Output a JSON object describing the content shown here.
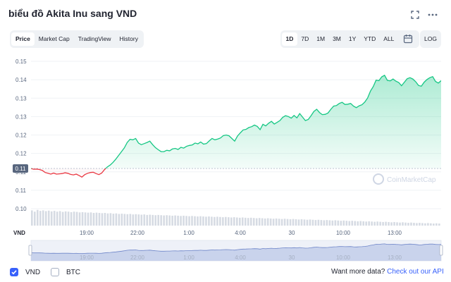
{
  "header": {
    "title": "biểu đồ Akita Inu sang VND"
  },
  "toolbar": {
    "fullscreen_icon": "expand-icon",
    "more_icon": "more-dots-icon",
    "tabs": [
      {
        "label": "Price",
        "active": true
      },
      {
        "label": "Market Cap",
        "active": false
      },
      {
        "label": "TradingView",
        "active": false
      },
      {
        "label": "History",
        "active": false
      }
    ],
    "ranges": [
      {
        "label": "1D",
        "active": true
      },
      {
        "label": "7D",
        "active": false
      },
      {
        "label": "1M",
        "active": false
      },
      {
        "label": "3M",
        "active": false
      },
      {
        "label": "1Y",
        "active": false
      },
      {
        "label": "YTD",
        "active": false
      },
      {
        "label": "ALL",
        "active": false
      }
    ],
    "calendar_icon": "calendar-icon",
    "log_label": "LOG"
  },
  "chart_data": {
    "type": "area",
    "currency_label": "VND",
    "current_price_tag": "0.11",
    "watermark": "CoinMarketCap",
    "y_ticks": [
      "0.15",
      "0.14",
      "0.13",
      "0.13",
      "0.12",
      "0.12",
      "0.11",
      "0.11",
      "0.10"
    ],
    "y_range": [
      0.095,
      0.15
    ],
    "x_ticks": [
      "19:00",
      "22:00",
      "1:00",
      "4:00",
      "30",
      "10:00",
      "13:00"
    ],
    "series": [
      {
        "values": [
          0.11,
          0.1097,
          0.1098,
          0.1096,
          0.1093,
          0.1085,
          0.1082,
          0.1079,
          0.1083,
          0.1079,
          0.108,
          0.1081,
          0.1084,
          0.1082,
          0.1078,
          0.1076,
          0.1079,
          0.1074,
          0.1068,
          0.1077,
          0.1082,
          0.1085,
          0.1086,
          0.1081,
          0.1077,
          0.1083,
          0.1096,
          0.1106,
          0.1113,
          0.1123,
          0.1135,
          0.1149,
          0.1163,
          0.1177,
          0.1197,
          0.1209,
          0.1207,
          0.1212,
          0.1195,
          0.1189,
          0.1193,
          0.1197,
          0.1202,
          0.1189,
          0.1178,
          0.117,
          0.1163,
          0.1163,
          0.1168,
          0.1166,
          0.1173,
          0.1175,
          0.1171,
          0.1179,
          0.1176,
          0.1183,
          0.1186,
          0.1188,
          0.1195,
          0.1192,
          0.1199,
          0.1191,
          0.1193,
          0.1203,
          0.1212,
          0.1207,
          0.121,
          0.1214,
          0.1223,
          0.1225,
          0.1222,
          0.1212,
          0.1202,
          0.1221,
          0.1233,
          0.1244,
          0.1246,
          0.1253,
          0.1256,
          0.1262,
          0.1257,
          0.1245,
          0.1265,
          0.1259,
          0.1269,
          0.1276,
          0.1266,
          0.1272,
          0.1279,
          0.1291,
          0.1297,
          0.1294,
          0.1288,
          0.1298,
          0.1289,
          0.1305,
          0.1292,
          0.1279,
          0.1283,
          0.1297,
          0.1313,
          0.1321,
          0.1309,
          0.1301,
          0.1302,
          0.1307,
          0.1321,
          0.1333,
          0.1335,
          0.1343,
          0.1347,
          0.1339,
          0.134,
          0.1343,
          0.1333,
          0.1327,
          0.1334,
          0.1338,
          0.1348,
          0.1363,
          0.1389,
          0.1406,
          0.143,
          0.1428,
          0.1442,
          0.1448,
          0.1429,
          0.1427,
          0.1434,
          0.1426,
          0.1421,
          0.1409,
          0.1422,
          0.1435,
          0.1439,
          0.1434,
          0.1424,
          0.141,
          0.1407,
          0.1422,
          0.1432,
          0.1439,
          0.1443,
          0.1425,
          0.1419,
          0.1428
        ]
      }
    ],
    "volume_values": [
      0.6,
      0.55,
      0.62,
      0.58,
      0.6,
      0.57,
      0.59,
      0.56,
      0.58,
      0.55,
      0.57,
      0.54,
      0.56,
      0.55,
      0.53,
      0.55,
      0.54,
      0.52,
      0.53,
      0.52,
      0.51,
      0.52,
      0.5,
      0.51,
      0.5,
      0.49,
      0.5,
      0.48,
      0.49,
      0.47,
      0.48,
      0.46,
      0.47,
      0.46,
      0.45,
      0.46,
      0.44,
      0.45,
      0.44,
      0.43,
      0.44,
      0.42,
      0.43,
      0.42,
      0.41,
      0.42,
      0.41,
      0.4,
      0.41,
      0.4,
      0.39,
      0.4,
      0.39,
      0.38,
      0.39,
      0.38,
      0.37,
      0.38,
      0.37,
      0.36,
      0.37,
      0.36,
      0.35,
      0.36,
      0.35,
      0.34,
      0.35,
      0.34,
      0.33,
      0.34,
      0.33,
      0.32,
      0.33,
      0.32,
      0.31,
      0.32,
      0.31,
      0.3,
      0.31,
      0.3,
      0.29,
      0.3,
      0.29,
      0.28,
      0.29,
      0.28,
      0.27,
      0.28,
      0.27,
      0.26,
      0.27,
      0.26,
      0.25,
      0.26,
      0.25,
      0.24,
      0.25,
      0.24,
      0.23,
      0.24,
      0.23,
      0.22,
      0.23,
      0.22,
      0.21,
      0.22,
      0.21,
      0.2,
      0.21,
      0.2,
      0.19,
      0.2,
      0.19,
      0.18,
      0.19,
      0.18,
      0.17,
      0.18,
      0.17,
      0.16,
      0.17,
      0.16,
      0.15,
      0.16,
      0.15,
      0.14,
      0.15,
      0.14,
      0.13,
      0.14,
      0.13,
      0.12,
      0.13,
      0.12,
      0.11,
      0.12,
      0.11,
      0.1,
      0.11,
      0.1,
      0.09,
      0.1,
      0.09,
      0.08,
      0.09,
      0.08
    ],
    "up_color": "#16c784",
    "down_color": "#ea3943",
    "grid": true
  },
  "footer": {
    "options": [
      {
        "label": "VND",
        "checked": true
      },
      {
        "label": "BTC",
        "checked": false
      }
    ],
    "api_text": "Want more data?",
    "api_link": "Check out our API"
  }
}
